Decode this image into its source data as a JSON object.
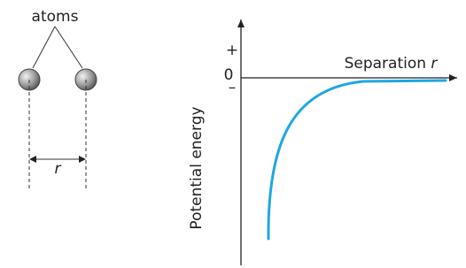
{
  "atoms_label": "atoms",
  "separation_symbol": "r",
  "y_axis": {
    "plus": "+",
    "zero": "0",
    "minus": "–",
    "label": "Potential energy"
  },
  "x_axis": {
    "label": "Separation",
    "variable": "r"
  }
}
